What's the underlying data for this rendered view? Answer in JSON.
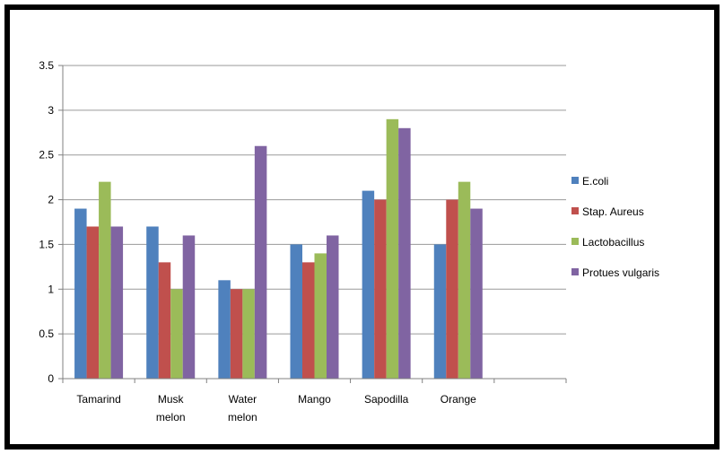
{
  "chart_data": {
    "type": "bar",
    "categories": [
      [
        "Tamarind"
      ],
      [
        "Musk",
        "melon"
      ],
      [
        "Water",
        "melon"
      ],
      [
        "Mango"
      ],
      [
        "Sapodilla"
      ],
      [
        "Orange"
      ],
      [
        ""
      ]
    ],
    "series": [
      {
        "name": "E.coli",
        "color": "#4F81BD",
        "values": [
          1.9,
          1.7,
          1.1,
          1.5,
          2.1,
          1.5,
          null
        ]
      },
      {
        "name": "Stap. Aureus",
        "color": "#C0504D",
        "values": [
          1.7,
          1.3,
          1.0,
          1.3,
          2.0,
          2.0,
          null
        ]
      },
      {
        "name": "Lactobacillus",
        "color": "#9BBB59",
        "values": [
          2.2,
          1.0,
          1.0,
          1.4,
          2.9,
          2.2,
          null
        ]
      },
      {
        "name": "Protues vulgaris",
        "color": "#8064A2",
        "values": [
          1.7,
          1.6,
          2.6,
          1.6,
          2.8,
          1.9,
          null
        ]
      }
    ],
    "yticks": [
      "0",
      "0.5",
      "1",
      "1.5",
      "2",
      "2.5",
      "3",
      "3.5"
    ],
    "ylim": [
      0,
      3.5
    ],
    "grid": true,
    "legend_position": "right",
    "title": "",
    "xlabel": "",
    "ylabel": ""
  }
}
